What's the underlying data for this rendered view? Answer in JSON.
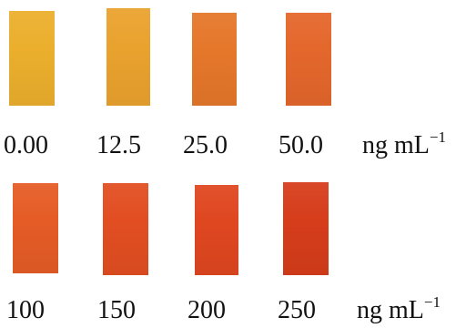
{
  "rows": [
    {
      "swatches": [
        {
          "concentration": "0.00",
          "color": "#EBAF2D"
        },
        {
          "concentration": "12.5",
          "color": "#EAA22E"
        },
        {
          "concentration": "25.0",
          "color": "#E5772A"
        },
        {
          "concentration": "50.0",
          "color": "#E4672C"
        }
      ],
      "unit": {
        "base": "ng mL",
        "exponent": "−1"
      }
    },
    {
      "swatches": [
        {
          "concentration": "100",
          "color": "#E55C26"
        },
        {
          "concentration": "150",
          "color": "#E24E22"
        },
        {
          "concentration": "200",
          "color": "#DF4720"
        },
        {
          "concentration": "250",
          "color": "#D63D1B"
        }
      ],
      "unit": {
        "base": "ng mL",
        "exponent": "−1"
      }
    }
  ]
}
